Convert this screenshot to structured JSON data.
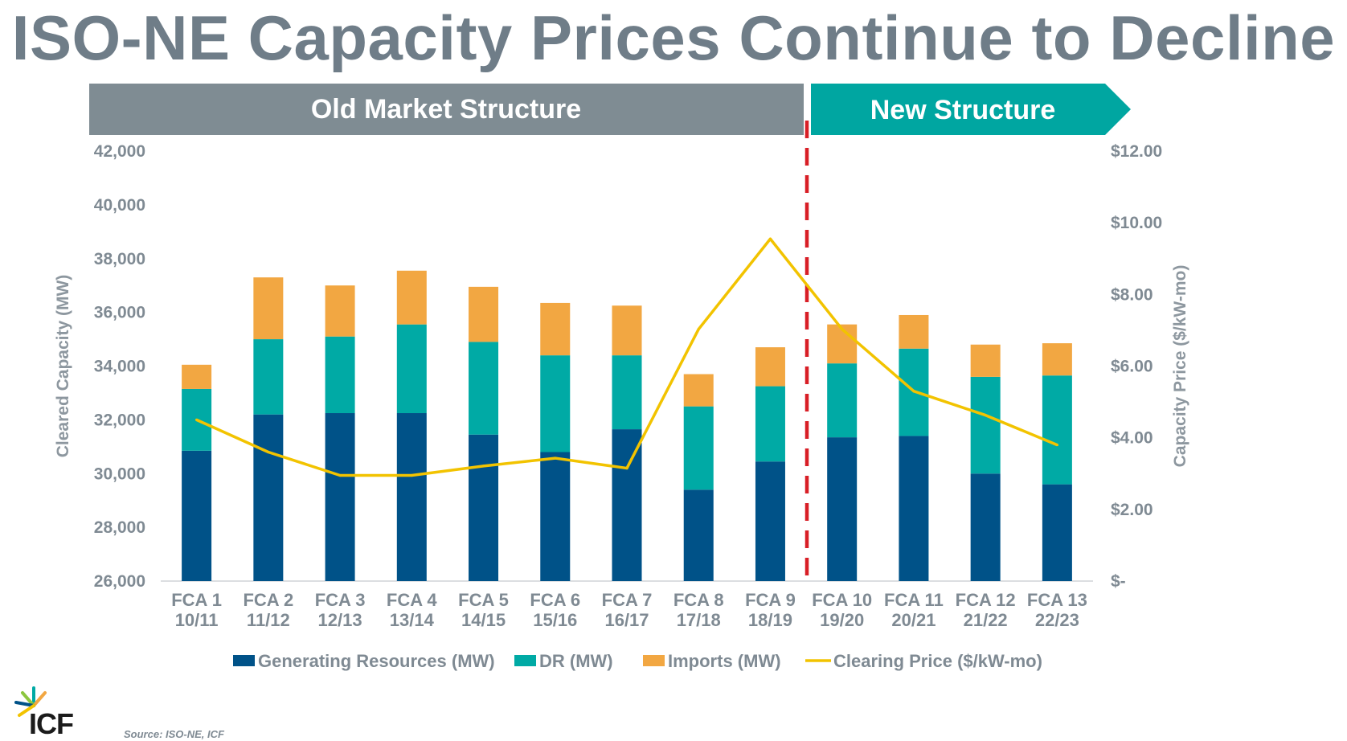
{
  "title": "ISO-NE Capacity Prices Continue to Decline",
  "bands": {
    "old": "Old Market Structure",
    "new": "New Structure"
  },
  "source": "Source: ISO-NE, ICF",
  "logo_text": "ICF",
  "colors": {
    "generating": "#005288",
    "dr": "#00aaa5",
    "imports": "#f2a742",
    "price": "#f2c300",
    "old_band": "#7f8c93",
    "new_band": "#00a6a1",
    "divider": "#d81e26",
    "text": "#7f8a93"
  },
  "chart_data": {
    "type": "bar",
    "stacked": true,
    "title": "ISO-NE Capacity Prices Continue to Decline",
    "categories": [
      [
        "FCA 1",
        "10/11"
      ],
      [
        "FCA 2",
        "11/12"
      ],
      [
        "FCA 3",
        "12/13"
      ],
      [
        "FCA 4",
        "13/14"
      ],
      [
        "FCA 5",
        "14/15"
      ],
      [
        "FCA 6",
        "15/16"
      ],
      [
        "FCA 7",
        "16/17"
      ],
      [
        "FCA 8",
        "17/18"
      ],
      [
        "FCA 9",
        "18/19"
      ],
      [
        "FCA 10",
        "19/20"
      ],
      [
        "FCA 11",
        "20/21"
      ],
      [
        "FCA 12",
        "21/22"
      ],
      [
        "FCA 13",
        "22/23"
      ]
    ],
    "series": [
      {
        "name": "Generating Resources (MW)",
        "key": "generating",
        "values": [
          30850,
          32200,
          32250,
          32250,
          31450,
          30800,
          31650,
          29400,
          30450,
          31350,
          31400,
          30000,
          29600
        ]
      },
      {
        "name": "DR (MW)",
        "key": "dr",
        "values": [
          2300,
          2800,
          2850,
          3300,
          3450,
          3600,
          2750,
          3100,
          2800,
          2750,
          3250,
          3600,
          4050
        ]
      },
      {
        "name": "Imports (MW)",
        "key": "imports",
        "values": [
          900,
          2300,
          1900,
          2000,
          2050,
          1950,
          1850,
          1200,
          1450,
          1450,
          1250,
          1200,
          1200
        ]
      },
      {
        "name": "Clearing Price ($/kW-mo)",
        "key": "price",
        "axis": "right",
        "line": true,
        "values": [
          4.5,
          3.6,
          2.95,
          2.95,
          3.21,
          3.43,
          3.15,
          7.03,
          9.55,
          7.03,
          5.3,
          4.63,
          3.8
        ]
      }
    ],
    "ylabel": "Cleared Capacity (MW)",
    "ylim": [
      26000,
      42000
    ],
    "yticks": [
      "26,000",
      "28,000",
      "30,000",
      "32,000",
      "34,000",
      "36,000",
      "38,000",
      "40,000",
      "42,000"
    ],
    "y2label": "Capacity Price ($/kW-mo)",
    "y2lim": [
      0,
      12
    ],
    "y2ticks": [
      "$-",
      "$2.00",
      "$4.00",
      "$6.00",
      "$8.00",
      "$10.00",
      "$12.00"
    ],
    "legend": [
      "Generating Resources (MW)",
      "DR (MW)",
      "Imports (MW)",
      "Clearing Price ($/kW-mo)"
    ]
  }
}
